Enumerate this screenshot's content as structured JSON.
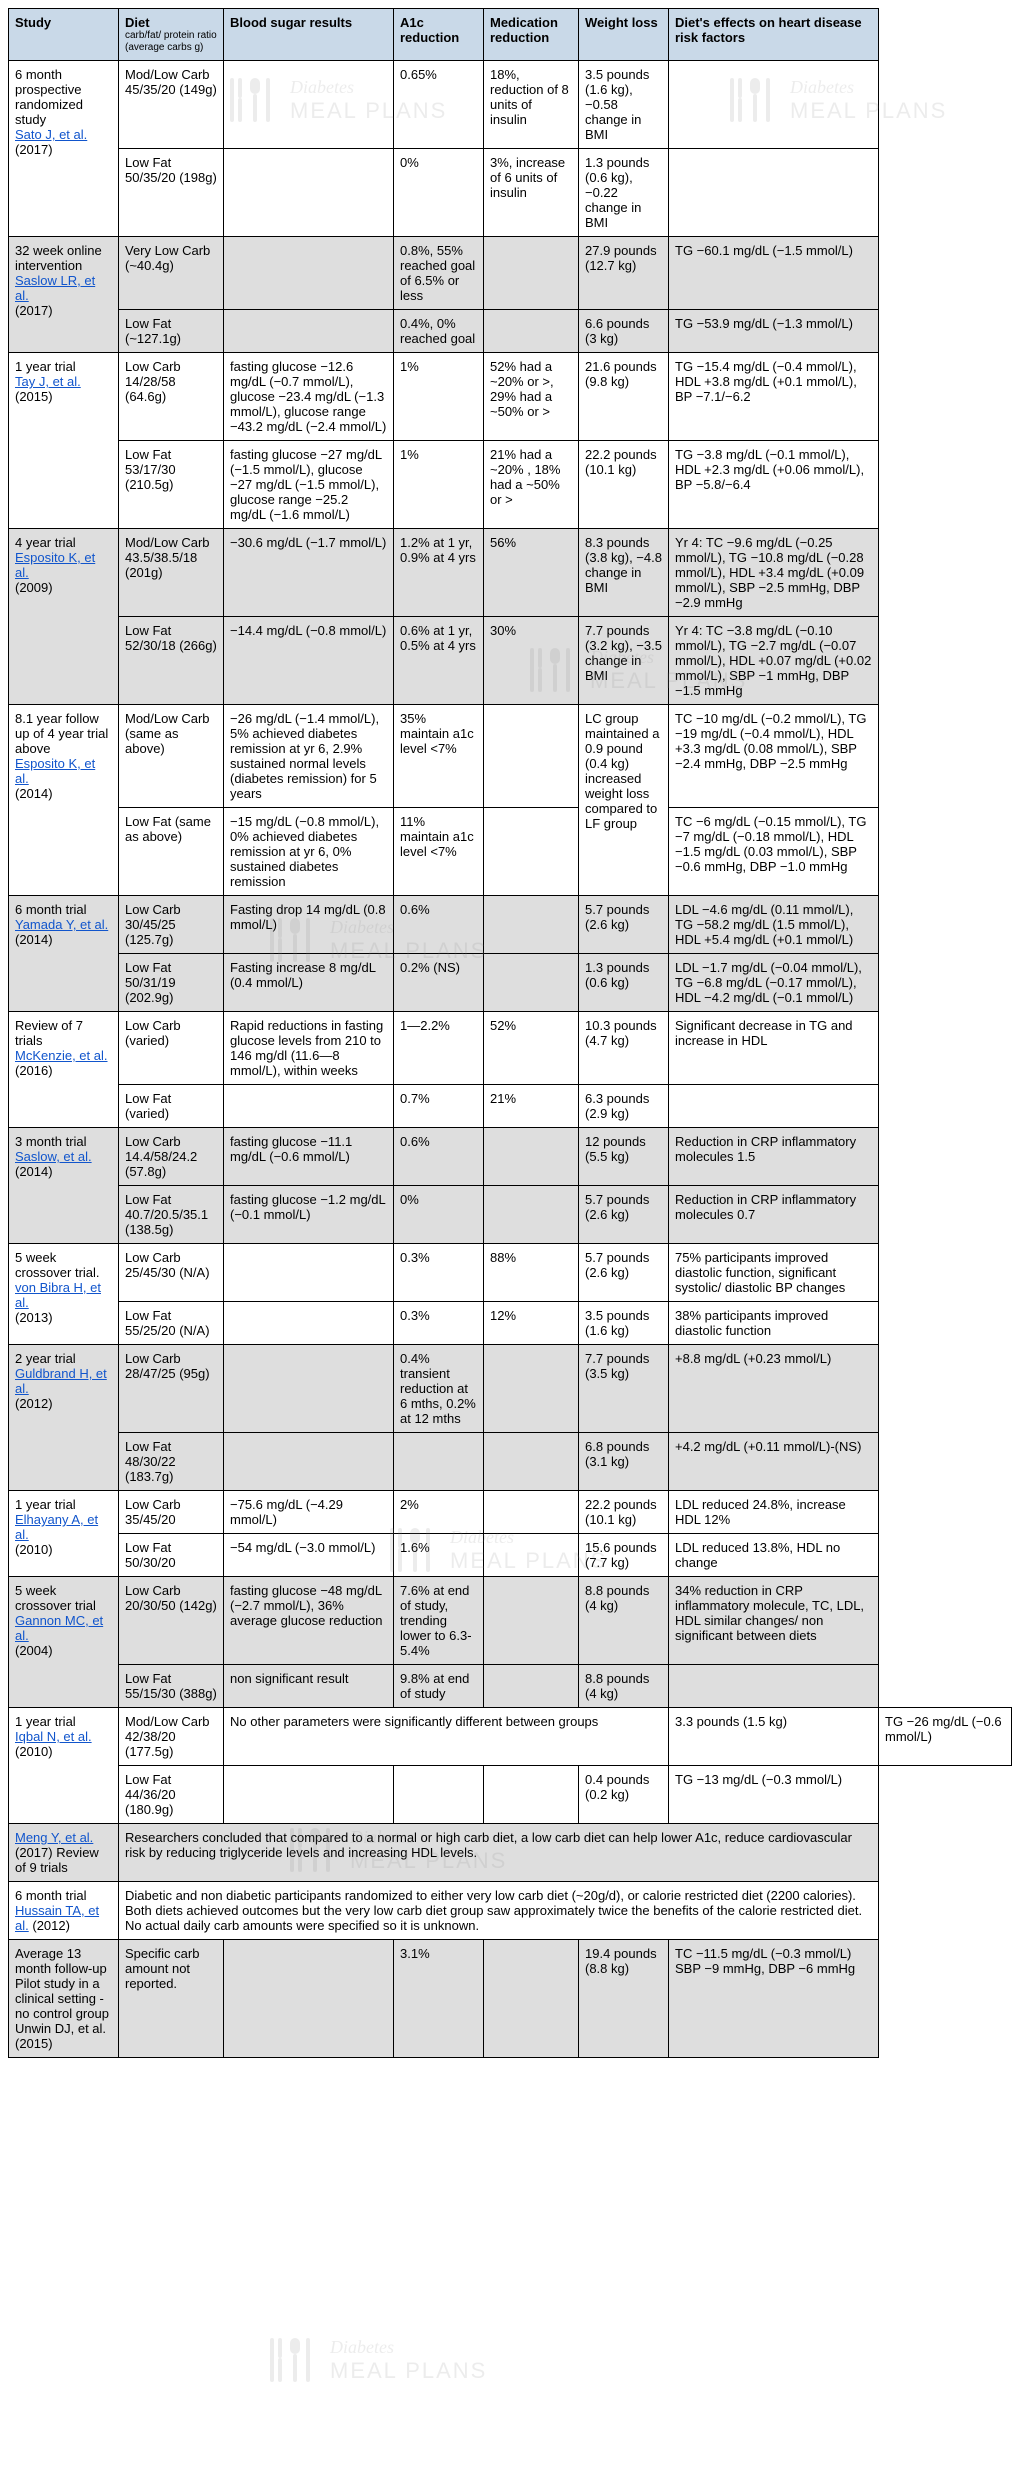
{
  "headers": {
    "study": "Study",
    "diet": "Diet",
    "diet_sub": "carb/fat/ protein ratio (average carbs g)",
    "blood": "Blood sugar results",
    "a1c": "A1c reduction",
    "med": "Medication reduction",
    "weight": "Weight loss",
    "heart": "Diet's effects on heart disease risk factors"
  },
  "watermark": {
    "line1": "Diabetes",
    "line2": "MEAL PLANS"
  },
  "studies": [
    {
      "alt": false,
      "study_pre": "6 month prospective randomized study",
      "ref": "Sato J, et al.",
      "year": "(2017)",
      "rows": [
        {
          "diet": "Mod/Low Carb 45/35/20 (149g)",
          "blood": "",
          "a1c": "0.65%",
          "med": "18%, reduction of 8 units of insulin",
          "weight": "3.5 pounds (1.6 kg), −0.58 change in BMI",
          "heart": ""
        },
        {
          "diet": "Low Fat 50/35/20 (198g)",
          "blood": "",
          "a1c": "0%",
          "med": "3%, increase of 6 units of insulin",
          "weight": "1.3 pounds (0.6 kg), −0.22 change in BMI",
          "heart": ""
        }
      ]
    },
    {
      "alt": true,
      "study_pre": "32 week online intervention",
      "ref": "Saslow LR, et al.",
      "year": "(2017)",
      "rows": [
        {
          "diet": "Very Low Carb (~40.4g)",
          "blood": "",
          "a1c": "0.8%, 55% reached goal of 6.5% or less",
          "med": "",
          "weight": "27.9 pounds (12.7 kg)",
          "heart": "TG −60.1 mg/dL (−1.5 mmol/L)"
        },
        {
          "diet": "Low Fat (~127.1g)",
          "blood": "",
          "a1c": "0.4%, 0% reached goal",
          "med": "",
          "weight": "6.6 pounds (3 kg)",
          "heart": "TG −53.9 mg/dL (−1.3 mmol/L)"
        }
      ]
    },
    {
      "alt": false,
      "study_pre": "1 year trial",
      "ref": "Tay J, et al.",
      "year": "(2015)",
      "rows": [
        {
          "diet": "Low Carb 14/28/58 (64.6g)",
          "blood": "fasting glucose −12.6 mg/dL (−0.7 mmol/L), glucose −23.4 mg/dL (−1.3 mmol/L), glucose range −43.2 mg/dL (−2.4 mmol/L)",
          "a1c": "1%",
          "med": "52% had a ~20% or >, 29% had a ~50% or >",
          "weight": "21.6 pounds (9.8 kg)",
          "heart": "TG −15.4 mg/dL (−0.4 mmol/L), HDL +3.8 mg/dL (+0.1 mmol/L), BP −7.1/−6.2"
        },
        {
          "diet": "Low Fat 53/17/30 (210.5g)",
          "blood": "fasting glucose −27 mg/dL (−1.5 mmol/L), glucose −27 mg/dL (−1.5 mmol/L), glucose range −25.2 mg/dL (−1.6 mmol/L)",
          "a1c": "1%",
          "med": "21% had a ~20% , 18% had a ~50% or >",
          "weight": "22.2 pounds (10.1 kg)",
          "heart": "TG −3.8 mg/dL (−0.1 mmol/L), HDL +2.3 mg/dL (+0.06 mmol/L), BP −5.8/−6.4"
        }
      ]
    },
    {
      "alt": true,
      "study_pre": "4 year trial",
      "ref": "Esposito K, et al.",
      "year": "(2009)",
      "rows": [
        {
          "diet": "Mod/Low Carb 43.5/38.5/18 (201g)",
          "blood": "−30.6 mg/dL (−1.7 mmol/L)",
          "a1c": "1.2% at 1 yr, 0.9% at 4 yrs",
          "med": "56%",
          "weight": "8.3 pounds (3.8 kg), −4.8 change in BMI",
          "heart": "Yr 4: TC −9.6 mg/dL (−0.25 mmol/L), TG −10.8 mg/dL (−0.28 mmol/L), HDL +3.4 mg/dL (+0.09 mmol/L), SBP −2.5 mmHg, DBP −2.9 mmHg"
        },
        {
          "diet": "Low Fat 52/30/18 (266g)",
          "blood": "−14.4 mg/dL (−0.8 mmol/L)",
          "a1c": "0.6% at 1 yr, 0.5% at 4 yrs",
          "med": "30%",
          "weight": "7.7 pounds (3.2 kg), −3.5 change in BMI",
          "heart": "Yr 4: TC −3.8 mg/dL (−0.10 mmol/L), TG −2.7 mg/dL (−0.07 mmol/L), HDL +0.07 mg/dL (+0.02 mmol/L), SBP −1 mmHg, DBP −1.5 mmHg"
        }
      ]
    },
    {
      "alt": false,
      "study_pre": "8.1 year follow up of 4 year trial above",
      "ref": "Esposito K, et al.",
      "year": "(2014)",
      "rows": [
        {
          "diet": "Mod/Low Carb (same as above)",
          "blood": "−26 mg/dL (−1.4 mmol/L), 5% achieved diabetes remission at yr 6, 2.9% sustained normal levels (diabetes remission) for 5 years",
          "a1c": "35% maintain a1c level <7%",
          "med": "",
          "weight": "LC group maintained a 0.9 pound (0.4 kg) increased weight loss compared to LF group",
          "heart": "TC −10 mg/dL (−0.2 mmol/L), TG −19 mg/dL (−0.4 mmol/L), HDL +3.3 mg/dL (0.08 mmol/L), SBP −2.4 mmHg, DBP −2.5 mmHg",
          "weight_rowspan": 2
        },
        {
          "diet": "Low Fat (same as above)",
          "blood": "−15 mg/dL (−0.8 mmol/L), 0% achieved diabetes remission at yr 6, 0% sustained diabetes remission",
          "a1c": "11% maintain a1c level <7%",
          "med": "",
          "heart": "TC −6 mg/dL (−0.15 mmol/L), TG −7 mg/dL (−0.18 mmol/L), HDL −1.5 mg/dL (0.03 mmol/L), SBP −0.6 mmHg, DBP −1.0 mmHg"
        }
      ]
    },
    {
      "alt": true,
      "study_pre": "6 month trial",
      "ref": "Yamada Y, et al.",
      "year": "(2014)",
      "rows": [
        {
          "diet": "Low Carb 30/45/25 (125.7g)",
          "blood": "Fasting drop 14 mg/dL (0.8 mmol/L)",
          "a1c": "0.6%",
          "med": "",
          "weight": "5.7 pounds (2.6 kg)",
          "heart": "LDL −4.6 mg/dL (0.11 mmol/L), TG −58.2 mg/dL (1.5 mmol/L), HDL +5.4 mg/dL (+0.1 mmol/L)"
        },
        {
          "diet": "Low Fat 50/31/19 (202.9g)",
          "blood": "Fasting increase 8 mg/dL (0.4 mmol/L)",
          "a1c": "0.2% (NS)",
          "med": "",
          "weight": "1.3 pounds (0.6 kg)",
          "heart": "LDL −1.7 mg/dL (−0.04 mmol/L), TG −6.8 mg/dL (−0.17 mmol/L), HDL −4.2 mg/dL (−0.1 mmol/L)"
        }
      ]
    },
    {
      "alt": false,
      "study_pre": "Review of 7 trials",
      "ref": "McKenzie, et al.",
      "year": "(2016)",
      "rows": [
        {
          "diet": "Low Carb (varied)",
          "blood": "Rapid reductions in fasting glucose levels from 210 to 146 mg/dl (11.6—8 mmol/L), within weeks",
          "a1c": "1—2.2%",
          "med": "52%",
          "weight": "10.3 pounds (4.7 kg)",
          "heart": "Significant decrease in TG and increase in HDL"
        },
        {
          "diet": "Low Fat (varied)",
          "blood": "",
          "a1c": "0.7%",
          "med": "21%",
          "weight": "6.3 pounds (2.9 kg)",
          "heart": ""
        }
      ]
    },
    {
      "alt": true,
      "study_pre": "3 month trial",
      "ref": "Saslow, et al.",
      "year": "(2014)",
      "rows": [
        {
          "diet": "Low Carb 14.4/58/24.2 (57.8g)",
          "blood": "fasting glucose −11.1 mg/dL (−0.6 mmol/L)",
          "a1c": "0.6%",
          "med": "",
          "weight": "12 pounds (5.5 kg)",
          "heart": "Reduction in CRP inflammatory molecules 1.5"
        },
        {
          "diet": "Low Fat 40.7/20.5/35.1 (138.5g)",
          "blood": "fasting glucose −1.2 mg/dL (−0.1 mmol/L)",
          "a1c": "0%",
          "med": "",
          "weight": "5.7 pounds (2.6 kg)",
          "heart": "Reduction in CRP inflammatory molecules 0.7"
        }
      ]
    },
    {
      "alt": false,
      "study_pre": "5 week crossover trial.",
      "ref": "von Bibra H, et al.",
      "year": "(2013)",
      "rows": [
        {
          "diet": "Low Carb 25/45/30 (N/A)",
          "blood": "",
          "a1c": "0.3%",
          "med": "88%",
          "weight": "5.7 pounds (2.6 kg)",
          "heart": "75% participants improved diastolic function, significant systolic/ diastolic BP changes"
        },
        {
          "diet": "Low Fat 55/25/20 (N/A)",
          "blood": "",
          "a1c": "0.3%",
          "med": "12%",
          "weight": "3.5 pounds (1.6 kg)",
          "heart": "38% participants improved diastolic function"
        }
      ]
    },
    {
      "alt": true,
      "study_pre": "2 year trial",
      "ref": "Guldbrand H, et al.",
      "year": "(2012)",
      "rows": [
        {
          "diet": "Low Carb 28/47/25 (95g)",
          "blood": "",
          "a1c": "0.4% transient reduction at 6 mths, 0.2% at 12 mths",
          "med": "",
          "weight": "7.7 pounds (3.5 kg)",
          "heart": "+8.8 mg/dL (+0.23 mmol/L)"
        },
        {
          "diet": "Low Fat 48/30/22 (183.7g)",
          "blood": "",
          "a1c": "",
          "med": "",
          "weight": "6.8 pounds (3.1 kg)",
          "heart": "+4.2 mg/dL (+0.11 mmol/L)-(NS)"
        }
      ]
    },
    {
      "alt": false,
      "study_pre": "1 year trial",
      "ref": "Elhayany A, et al.",
      "year": "(2010)",
      "rows": [
        {
          "diet": "Low Carb 35/45/20",
          "blood": "−75.6 mg/dL (−4.29 mmol/L)",
          "a1c": "2%",
          "med": "",
          "weight": "22.2 pounds (10.1 kg)",
          "heart": "LDL reduced 24.8%, increase HDL 12%"
        },
        {
          "diet": "Low Fat 50/30/20",
          "blood": "−54 mg/dL (−3.0 mmol/L)",
          "a1c": "1.6%",
          "med": "",
          "weight": "15.6 pounds (7.7 kg)",
          "heart": "LDL reduced 13.8%, HDL no change"
        }
      ]
    },
    {
      "alt": true,
      "study_pre": "5 week crossover trial",
      "ref": "Gannon MC, et al.",
      "year": "(2004)",
      "rows": [
        {
          "diet": "Low Carb 20/30/50 (142g)",
          "blood": "fasting glucose −48 mg/dL (−2.7 mmol/L), 36% average glucose reduction",
          "a1c": "7.6% at end of study, trending lower to 6.3-5.4%",
          "med": "",
          "weight": "8.8 pounds (4 kg)",
          "heart": "34% reduction in CRP inflammatory molecule, TC, LDL, HDL similar changes/ non significant between diets"
        },
        {
          "diet": "Low Fat 55/15/30 (388g)",
          "blood": "non significant result",
          "a1c": "9.8% at end of study",
          "med": "",
          "weight": "8.8 pounds (4 kg)",
          "heart": ""
        }
      ]
    },
    {
      "alt": false,
      "study_pre": "1 year trial",
      "ref": "Iqbal N, et al.",
      "year": "(2010)",
      "rows": [
        {
          "diet": "Mod/Low Carb 42/38/20 (177.5g)",
          "blood": "No other parameters were significantly different between groups",
          "blood_colspan": 4,
          "weight": "3.3 pounds (1.5 kg)",
          "heart": "TG −26 mg/dL (−0.6 mmol/L)"
        },
        {
          "diet": "Low Fat 44/36/20 (180.9g)",
          "blood": "",
          "a1c": "",
          "med": "",
          "weight": "0.4 pounds (0.2 kg)",
          "heart": "TG −13 mg/dL (−0.3 mmol/L)"
        }
      ]
    },
    {
      "alt": true,
      "study_pre": "",
      "ref": "Meng Y, et al.",
      "year": "(2017) Review of 9 trials",
      "full": "Researchers concluded that compared to a normal or high carb diet, a low carb diet can help lower A1c, reduce cardiovascular risk by reducing triglyceride levels and increasing HDL levels."
    },
    {
      "alt": false,
      "study_pre": "6 month trial",
      "ref": "Hussain TA, et al.",
      "year": "(2012)",
      "full": "Diabetic and non diabetic participants randomized to either very low carb diet (~20g/d), or calorie restricted diet (2200 calories). Both diets achieved outcomes but the very low carb diet group saw approximately twice the benefits of the calorie restricted diet. No actual daily carb amounts were specified so it is unknown."
    },
    {
      "alt": true,
      "study_pre": "Average 13 month follow-up Pilot study in a clinical setting - no control group Unwin DJ, et al. (2015)",
      "ref": "",
      "year": "",
      "rows": [
        {
          "diet": "Specific carb amount not reported.",
          "blood": "",
          "a1c": "3.1%",
          "med": "",
          "weight": "19.4 pounds (8.8 kg)",
          "heart": "TC −11.5 mg/dL (−0.3 mmol/L) SBP −9 mmHg, DBP −6 mmHg"
        }
      ]
    }
  ]
}
